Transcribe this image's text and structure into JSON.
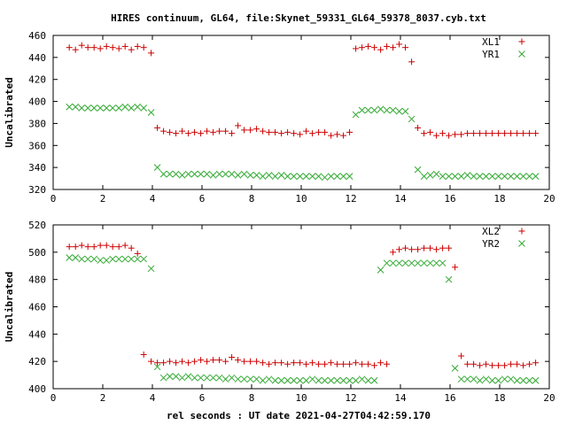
{
  "title": "HIRES continuum, GL64, file:Skynet_59331_GL64_59378_8037.cyb.txt",
  "xlabel": "rel seconds : UT date 2021-04-27T04:42:59.170",
  "colors": {
    "series_a": "#cc0000",
    "series_b": "#33aa33",
    "frame": "#000000"
  },
  "chart_data": [
    {
      "type": "scatter",
      "ylabel": "Uncalibrated",
      "xlim": [
        0,
        20
      ],
      "ylim": [
        320,
        460
      ],
      "xticks": [
        0,
        2,
        4,
        6,
        8,
        10,
        12,
        14,
        16,
        18,
        20
      ],
      "yticks": [
        320,
        340,
        360,
        380,
        400,
        420,
        440,
        460
      ],
      "legend_position": "top-right",
      "series": [
        {
          "name": "XL1",
          "marker": "plus",
          "color": "#cc0000",
          "x": [
            0.65,
            0.9,
            1.15,
            1.4,
            1.65,
            1.9,
            2.15,
            2.4,
            2.65,
            2.9,
            3.15,
            3.4,
            3.65,
            3.95,
            4.2,
            4.45,
            4.7,
            4.95,
            5.2,
            5.45,
            5.7,
            5.95,
            6.2,
            6.45,
            6.7,
            6.95,
            7.2,
            7.45,
            7.7,
            7.95,
            8.2,
            8.45,
            8.7,
            8.95,
            9.2,
            9.45,
            9.7,
            9.95,
            10.2,
            10.45,
            10.7,
            10.95,
            11.2,
            11.45,
            11.7,
            11.95,
            12.2,
            12.45,
            12.7,
            12.95,
            13.2,
            13.45,
            13.7,
            13.95,
            14.2,
            14.45,
            14.7,
            14.95,
            15.2,
            15.45,
            15.7,
            15.95,
            16.2,
            16.45,
            16.7,
            16.95,
            17.2,
            17.45,
            17.7,
            17.95,
            18.2,
            18.45,
            18.7,
            18.95,
            19.2,
            19.45
          ],
          "y": [
            449,
            447,
            451,
            449,
            449,
            448,
            450,
            449,
            448,
            450,
            447,
            450,
            449,
            444,
            376,
            373,
            372,
            371,
            373,
            371,
            372,
            371,
            373,
            372,
            373,
            373,
            371,
            378,
            374,
            374,
            375,
            373,
            372,
            372,
            371,
            372,
            371,
            370,
            373,
            371,
            372,
            372,
            369,
            370,
            369,
            372,
            448,
            449,
            450,
            449,
            447,
            450,
            449,
            452,
            449,
            436,
            376,
            371,
            372,
            369,
            371,
            369,
            370,
            370,
            371,
            371,
            371,
            371,
            371,
            371,
            371,
            371,
            371,
            371,
            371,
            371
          ],
          "y_note": null
        },
        {
          "name": "YR1",
          "marker": "cross",
          "color": "#33aa33",
          "x": [
            0.65,
            0.9,
            1.15,
            1.4,
            1.65,
            1.9,
            2.15,
            2.4,
            2.65,
            2.9,
            3.15,
            3.4,
            3.65,
            3.95,
            4.2,
            4.45,
            4.7,
            4.95,
            5.2,
            5.45,
            5.7,
            5.95,
            6.2,
            6.45,
            6.7,
            6.95,
            7.2,
            7.45,
            7.7,
            7.95,
            8.2,
            8.45,
            8.7,
            8.95,
            9.2,
            9.45,
            9.7,
            9.95,
            10.2,
            10.45,
            10.7,
            10.95,
            11.2,
            11.45,
            11.7,
            11.95,
            12.2,
            12.45,
            12.7,
            12.95,
            13.2,
            13.45,
            13.7,
            13.95,
            14.2,
            14.45,
            14.7,
            14.95,
            15.2,
            15.45,
            15.7,
            15.95,
            16.2,
            16.45,
            16.7,
            16.95,
            17.2,
            17.45,
            17.7,
            17.95,
            18.2,
            18.45,
            18.7,
            18.95,
            19.2,
            19.45
          ],
          "y": [
            395,
            395,
            394,
            394,
            394,
            394,
            394,
            394,
            394,
            395,
            394,
            395,
            394,
            390,
            340,
            334,
            334,
            334,
            333,
            334,
            334,
            334,
            334,
            333,
            334,
            334,
            334,
            333,
            334,
            333,
            333,
            332,
            333,
            332,
            333,
            332,
            332,
            332,
            332,
            332,
            332,
            331,
            332,
            332,
            332,
            332,
            388,
            392,
            392,
            392,
            393,
            392,
            392,
            391,
            391,
            384,
            338,
            332,
            333,
            334,
            332,
            332,
            332,
            332,
            333,
            332,
            332,
            332,
            332,
            332,
            332,
            332,
            332,
            332,
            332,
            332
          ]
        }
      ]
    },
    {
      "type": "scatter",
      "ylabel": "Uncalibrated",
      "xlim": [
        0,
        20
      ],
      "ylim": [
        400,
        520
      ],
      "xticks": [
        0,
        2,
        4,
        6,
        8,
        10,
        12,
        14,
        16,
        18,
        20
      ],
      "yticks": [
        400,
        420,
        440,
        460,
        480,
        500,
        520
      ],
      "legend_position": "top-right",
      "series": [
        {
          "name": "XL2",
          "marker": "plus",
          "color": "#cc0000",
          "x": [
            0.65,
            0.9,
            1.15,
            1.4,
            1.65,
            1.9,
            2.15,
            2.4,
            2.65,
            2.9,
            3.15,
            3.4,
            3.65,
            3.95,
            4.2,
            4.45,
            4.7,
            4.95,
            5.2,
            5.45,
            5.7,
            5.95,
            6.2,
            6.45,
            6.7,
            6.95,
            7.2,
            7.45,
            7.7,
            7.95,
            8.2,
            8.45,
            8.7,
            8.95,
            9.2,
            9.45,
            9.7,
            9.95,
            10.2,
            10.45,
            10.7,
            10.95,
            11.2,
            11.45,
            11.7,
            11.95,
            12.2,
            12.45,
            12.7,
            12.95,
            13.2,
            13.45,
            13.7,
            13.95,
            14.2,
            14.45,
            14.7,
            14.95,
            15.2,
            15.45,
            15.7,
            15.95,
            16.2,
            16.45,
            16.7,
            16.95,
            17.2,
            17.45,
            17.7,
            17.95,
            18.2,
            18.45,
            18.7,
            18.95,
            19.2,
            19.45
          ],
          "y": [
            504,
            504,
            505,
            504,
            504,
            505,
            505,
            504,
            504,
            505,
            503,
            499,
            425,
            420,
            419,
            419,
            420,
            419,
            420,
            419,
            420,
            421,
            420,
            421,
            421,
            420,
            423,
            421,
            420,
            420,
            420,
            419,
            418,
            419,
            419,
            418,
            419,
            419,
            418,
            419,
            418,
            418,
            419,
            418,
            418,
            418,
            419,
            418,
            418,
            417,
            419,
            418,
            500,
            502,
            503,
            502,
            502,
            503,
            503,
            502,
            503,
            503,
            489,
            424,
            418,
            418,
            417,
            418,
            417,
            417,
            417,
            418,
            418,
            417,
            418,
            419
          ],
          "y_note": null
        },
        {
          "name": "YR2",
          "marker": "cross",
          "color": "#33aa33",
          "x": [
            0.65,
            0.9,
            1.15,
            1.4,
            1.65,
            1.9,
            2.15,
            2.4,
            2.65,
            2.9,
            3.15,
            3.4,
            3.65,
            3.95,
            4.2,
            4.45,
            4.7,
            4.95,
            5.2,
            5.45,
            5.7,
            5.95,
            6.2,
            6.45,
            6.7,
            6.95,
            7.2,
            7.45,
            7.7,
            7.95,
            8.2,
            8.45,
            8.7,
            8.95,
            9.2,
            9.45,
            9.7,
            9.95,
            10.2,
            10.45,
            10.7,
            10.95,
            11.2,
            11.45,
            11.7,
            11.95,
            12.2,
            12.45,
            12.7,
            12.95,
            13.2,
            13.45,
            13.7,
            13.95,
            14.2,
            14.45,
            14.7,
            14.95,
            15.2,
            15.45,
            15.7,
            15.95,
            16.2,
            16.45,
            16.7,
            16.95,
            17.2,
            17.45,
            17.7,
            17.95,
            18.2,
            18.45,
            18.7,
            18.95,
            19.2,
            19.45
          ],
          "y": [
            496,
            496,
            495,
            495,
            495,
            494,
            494,
            495,
            495,
            495,
            495,
            495,
            495,
            488,
            416,
            408,
            409,
            409,
            408,
            409,
            408,
            408,
            408,
            408,
            408,
            407,
            408,
            407,
            407,
            407,
            407,
            406,
            407,
            406,
            406,
            406,
            406,
            406,
            406,
            407,
            406,
            406,
            406,
            406,
            406,
            406,
            406,
            407,
            406,
            406,
            487,
            492,
            492,
            492,
            492,
            492,
            492,
            492,
            492,
            492,
            492,
            480,
            415,
            407,
            407,
            407,
            406,
            407,
            406,
            406,
            407,
            407,
            406,
            406,
            406,
            406
          ]
        }
      ]
    }
  ]
}
